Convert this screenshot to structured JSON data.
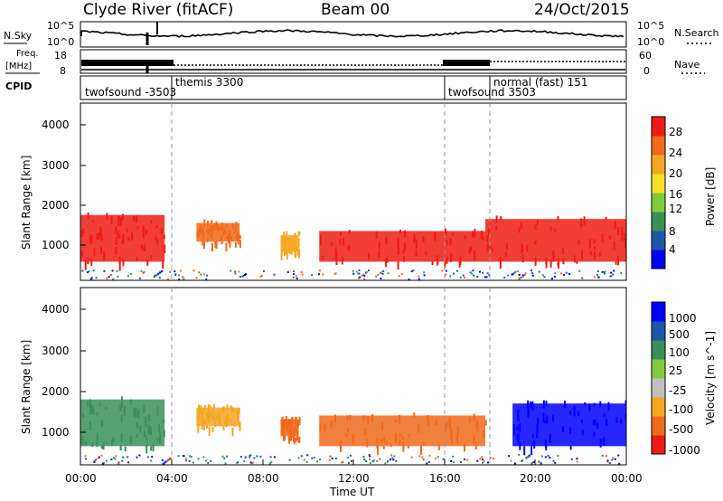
{
  "header": {
    "station": "Clyde River (fitACF)",
    "beam": "Beam 00",
    "date": "24/Oct/2015"
  },
  "noise_panel": {
    "left_label": "N.Sky",
    "right_label": "N.Search",
    "left_ticks": [
      "10^5",
      "10^0"
    ],
    "right_ticks": [
      "10^5",
      "10^0"
    ]
  },
  "freq_panel": {
    "left_label_top": "Freq.",
    "left_label_units": "[MHz]",
    "left_ticks": [
      "18",
      "8"
    ],
    "right_label": "Nave",
    "right_ticks": [
      "60",
      "0"
    ]
  },
  "cpid_panel": {
    "label": "CPID",
    "segments": [
      {
        "start_hour": 0.0,
        "text": "twofsound -3503"
      },
      {
        "start_hour": 4.0,
        "text": "themis 3300"
      },
      {
        "start_hour": 16.0,
        "text": "twofsound 3503"
      },
      {
        "start_hour": 18.0,
        "text": "normal (fast) 151"
      }
    ]
  },
  "power_panel": {
    "ylabel": "Slant Range [km]",
    "yticks": [
      "1000",
      "2000",
      "3000",
      "4000"
    ],
    "colorbar_label": "Power [dB]",
    "colorbar_ticks": [
      "4",
      "8",
      "12",
      "16",
      "20",
      "24",
      "28"
    ],
    "colorbar_colors": [
      "#0000ff",
      "#1f57a8",
      "#3a8f5a",
      "#7fcb3c",
      "#f2e024",
      "#f5a623",
      "#f06a1c",
      "#ee1c14"
    ]
  },
  "velocity_panel": {
    "ylabel": "Slant Range [km]",
    "yticks": [
      "1000",
      "2000",
      "3000",
      "4000"
    ],
    "colorbar_label": "Velocity [m s^-1]",
    "colorbar_ticks": [
      "1000",
      "500",
      "100",
      "25",
      "-25",
      "-100",
      "-500",
      "-1000"
    ],
    "colorbar_colors": [
      "#0000ff",
      "#1f57a8",
      "#3a8f5a",
      "#7fcb3c",
      "#c0c0c0",
      "#f5a623",
      "#f06a1c",
      "#ee1c14"
    ]
  },
  "xaxis": {
    "label": "Time UT",
    "ticks": [
      "00:00",
      "04:00",
      "08:00",
      "12:00",
      "16:00",
      "20:00",
      "00:00"
    ]
  },
  "chart_data": {
    "type": "heatmap",
    "title": "Clyde River (fitACF)  Beam 00  24/Oct/2015",
    "xlabel": "Time UT",
    "ylabel": "Slant Range [km]",
    "xlim_hours": [
      0,
      24
    ],
    "ylim_km": [
      180,
      4600
    ],
    "cpid_boundaries_hours": [
      4,
      16,
      18
    ],
    "power_blobs": [
      {
        "t0": 0.0,
        "t1": 3.7,
        "r0": 600,
        "r1": 1900,
        "color": "#ee1c14"
      },
      {
        "t0": 5.1,
        "t1": 7.0,
        "r0": 1100,
        "r1": 1700,
        "color": "#f06a1c"
      },
      {
        "t0": 8.8,
        "t1": 9.6,
        "r0": 850,
        "r1": 1400,
        "color": "#f5a623"
      },
      {
        "t0": 10.5,
        "t1": 17.8,
        "r0": 600,
        "r1": 1500,
        "color": "#ee1c14"
      },
      {
        "t0": 17.8,
        "t1": 24.0,
        "r0": 600,
        "r1": 1800,
        "color": "#ee1c14"
      }
    ],
    "velocity_blobs": [
      {
        "t0": 0.0,
        "t1": 3.7,
        "r0": 600,
        "r1": 1900,
        "color": "#3a8f5a"
      },
      {
        "t0": 5.1,
        "t1": 7.0,
        "r0": 1100,
        "r1": 1700,
        "color": "#f5a623"
      },
      {
        "t0": 8.8,
        "t1": 9.6,
        "r0": 850,
        "r1": 1400,
        "color": "#f06a1c"
      },
      {
        "t0": 10.5,
        "t1": 17.8,
        "r0": 600,
        "r1": 1500,
        "color": "#f06a1c"
      },
      {
        "t0": 19.0,
        "t1": 24.0,
        "r0": 600,
        "r1": 1800,
        "color": "#0000ff"
      }
    ]
  }
}
